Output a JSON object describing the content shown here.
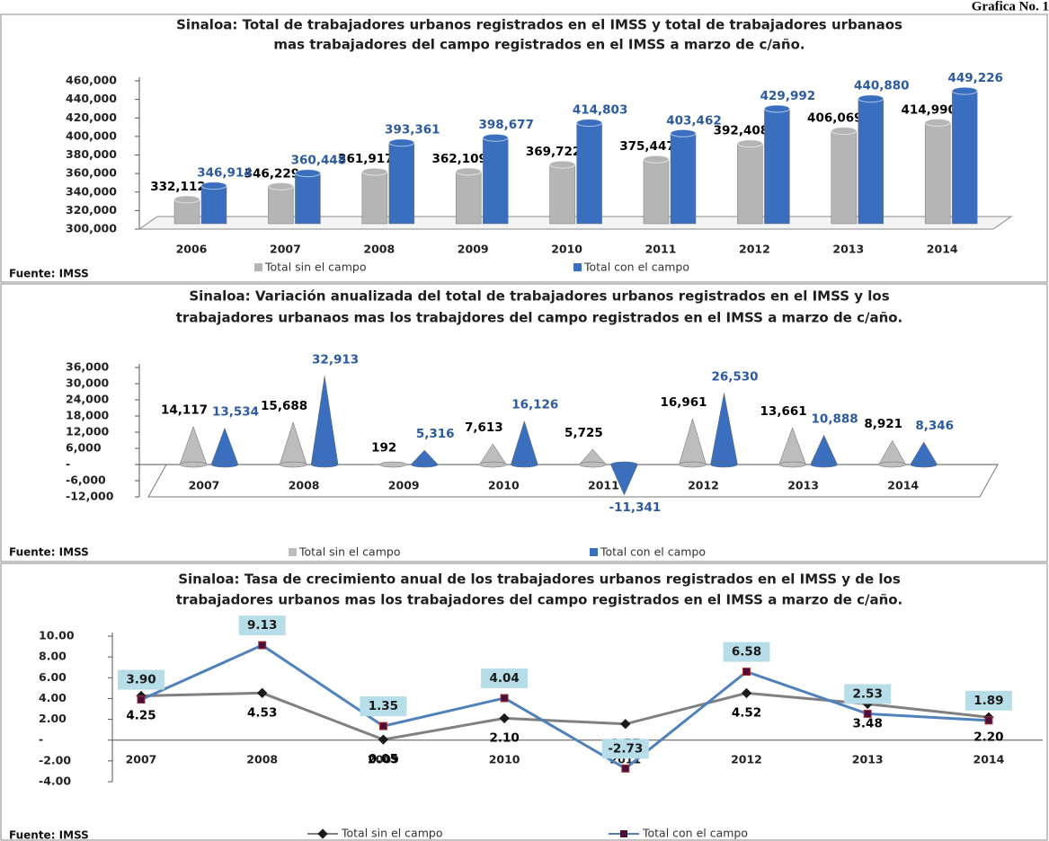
{
  "header": "Grafica No. 1",
  "chart_data": [
    {
      "type": "bar",
      "title": [
        "Sinaloa: Total de trabajadores urbanos registrados en el IMSS y total de trabajadores urbanaos",
        "mas trabajadores del campo registrados en el IMSS a marzo de c/año."
      ],
      "categories": [
        "2006",
        "2007",
        "2008",
        "2009",
        "2010",
        "2011",
        "2012",
        "2013",
        "2014"
      ],
      "series": [
        {
          "name": "Total sin el campo",
          "color": "#b5b5b5",
          "label_color": "#000000",
          "values": [
            332112,
            346229,
            361917,
            362109,
            369722,
            375447,
            392408,
            406069,
            414990
          ],
          "value_labels": [
            "332,112",
            "346,229",
            "361,917",
            "362,109",
            "369,722",
            "375,447",
            "392,408",
            "406,069",
            "414,990"
          ]
        },
        {
          "name": "Total con el campo",
          "color": "#3a6fc0",
          "label_color": "#2c5aa0",
          "values": [
            346914,
            360448,
            393361,
            398677,
            414803,
            403462,
            429992,
            440880,
            449226
          ],
          "value_labels": [
            "346,914",
            "360,448",
            "393,361",
            "398,677",
            "414,803",
            "403,462",
            "429,992",
            "440,880",
            "449,226"
          ]
        }
      ],
      "ylim": [
        300000,
        460000
      ],
      "yticks": [
        {
          "value": 300000,
          "label": "300,000"
        },
        {
          "value": 320000,
          "label": "320,000"
        },
        {
          "value": 340000,
          "label": "340,000"
        },
        {
          "value": 360000,
          "label": "360,000"
        },
        {
          "value": 380000,
          "label": "380,000"
        },
        {
          "value": 400000,
          "label": "400,000"
        },
        {
          "value": 420000,
          "label": "420,000"
        },
        {
          "value": 440000,
          "label": "440,000"
        },
        {
          "value": 460000,
          "label": "460,000"
        }
      ],
      "source": "Fuente: IMSS"
    },
    {
      "type": "cone",
      "title": [
        "Sinaloa: Variación anualizada del total de trabajadores urbanos registrados en el IMSS y los",
        "trabajadores urbanaos mas los trabajdores del campo registrados en el IMSS a marzo de c/año."
      ],
      "categories": [
        "2007",
        "2008",
        "2009",
        "2010",
        "2011",
        "2012",
        "2013",
        "2014"
      ],
      "series": [
        {
          "name": "Total sin el campo",
          "color": "#bdbdbd",
          "label_color": "#000000",
          "values": [
            14117,
            15688,
            192,
            7613,
            5725,
            16961,
            13661,
            8921
          ],
          "value_labels": [
            "14,117",
            "15,688",
            "192",
            "7,613",
            "5,725",
            "16,961",
            "13,661",
            "8,921"
          ]
        },
        {
          "name": "Total con el campo",
          "color": "#3a6fc0",
          "label_color": "#2c5aa0",
          "values": [
            13534,
            32913,
            5316,
            16126,
            -11341,
            26530,
            10888,
            8346
          ],
          "value_labels": [
            "13,534",
            "32,913",
            "5,316",
            "16,126",
            "-11,341",
            "26,530",
            "10,888",
            "8,346"
          ]
        }
      ],
      "ylim": [
        -12000,
        36000
      ],
      "yticks": [
        {
          "value": -12000,
          "label": "-12,000"
        },
        {
          "value": -6000,
          "label": "-6,000"
        },
        {
          "value": 0,
          "label": "-"
        },
        {
          "value": 6000,
          "label": "6,000"
        },
        {
          "value": 12000,
          "label": "12,000"
        },
        {
          "value": 18000,
          "label": "18,000"
        },
        {
          "value": 24000,
          "label": "24,000"
        },
        {
          "value": 30000,
          "label": "30,000"
        },
        {
          "value": 36000,
          "label": "36,000"
        }
      ],
      "source": "Fuente: IMSS"
    },
    {
      "type": "line",
      "title": [
        "Sinaloa: Tasa de crecimiento anual de los trabajadores urbanos registrados en el IMSS y de los",
        "trabajadores urbanos mas los trabajadores del campo registrados en el IMSS a marzo de c/año."
      ],
      "categories": [
        "2007",
        "2008",
        "2009",
        "2010",
        "2011",
        "2012",
        "2013",
        "2014"
      ],
      "series": [
        {
          "name": "Total sin el campo",
          "color": "#808080",
          "marker_color": "#1a1a1a",
          "label_color": "#000000",
          "values": [
            4.25,
            4.53,
            0.05,
            2.1,
            1.55,
            4.52,
            3.48,
            2.2
          ],
          "value_labels": [
            "4.25",
            "4.53",
            "0.05",
            "2.10",
            "1.55",
            "4.52",
            "3.48",
            "2.20"
          ]
        },
        {
          "name": "Total con el campo",
          "color": "#4f81bd",
          "marker_color": "#4b0f3a",
          "label_color": "#1a1a1a",
          "label_box": "#b7dde8",
          "values": [
            3.9,
            9.13,
            1.35,
            4.04,
            -2.73,
            6.58,
            2.53,
            1.89
          ],
          "value_labels": [
            "3.90",
            "9.13",
            "1.35",
            "4.04",
            "-2.73",
            "6.58",
            "2.53",
            "1.89"
          ]
        }
      ],
      "ylim": [
        -4,
        10
      ],
      "yticks": [
        {
          "value": -4,
          "label": "-4.00"
        },
        {
          "value": -2,
          "label": "-2.00"
        },
        {
          "value": 0,
          "label": "-"
        },
        {
          "value": 2,
          "label": "2.00"
        },
        {
          "value": 4,
          "label": "4.00"
        },
        {
          "value": 6,
          "label": "6.00"
        },
        {
          "value": 8,
          "label": "8.00"
        },
        {
          "value": 10,
          "label": "10.00"
        }
      ],
      "source": "Fuente: IMSS"
    }
  ]
}
